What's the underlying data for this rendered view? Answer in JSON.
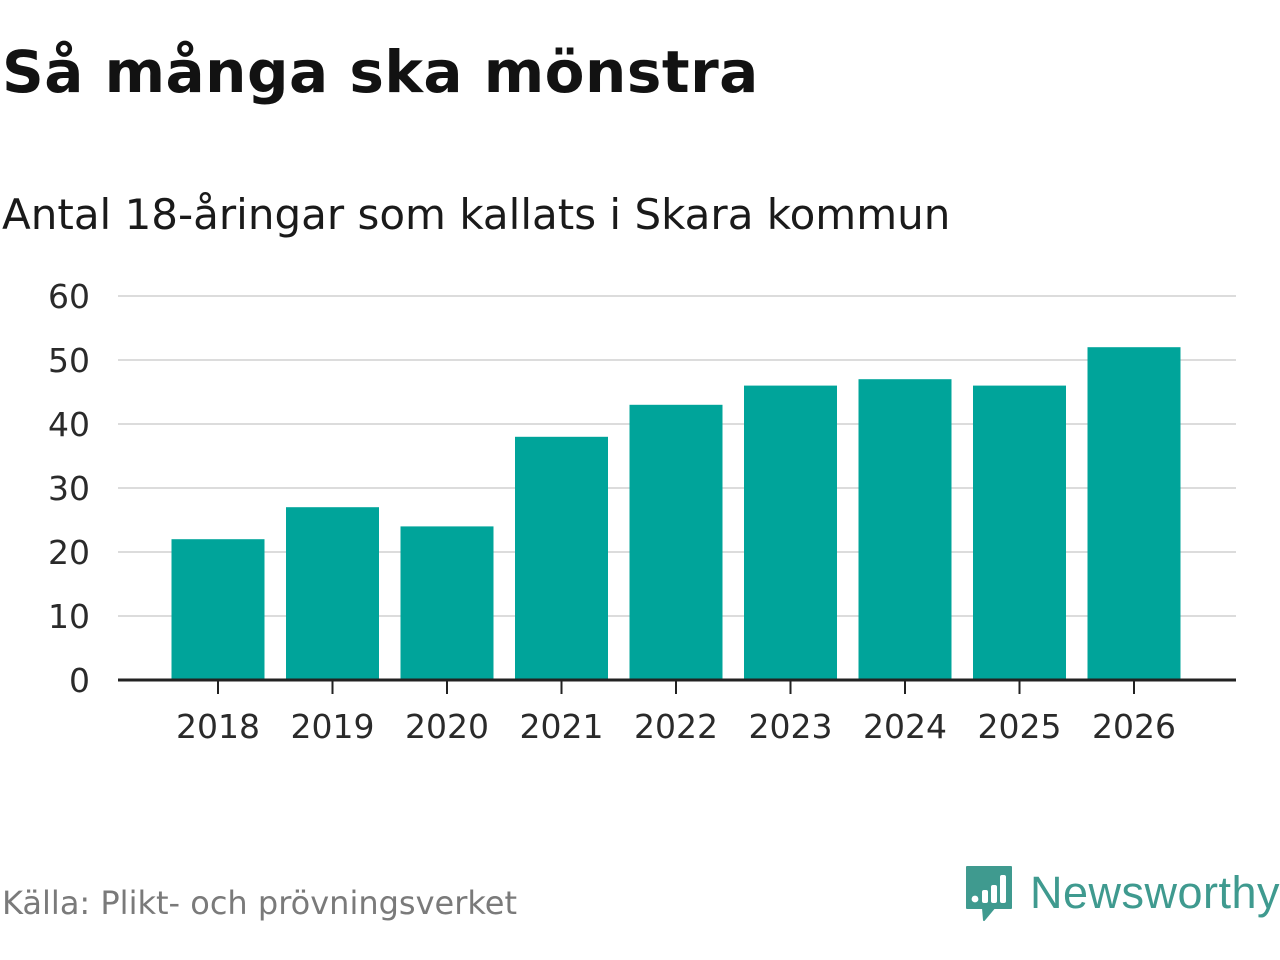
{
  "header": {
    "title": "Så många ska mönstra",
    "subtitle": "Antal 18-åringar som kallats i Skara kommun"
  },
  "footer": {
    "source": "Källa: Plikt- och prövningsverket",
    "brand": "Newsworthy",
    "brand_icon": "newsworthy-logo-icon"
  },
  "colors": {
    "bar": "#00a49a",
    "grid": "#dcdcdc",
    "axis": "#222222",
    "brand": "#3f9a8f"
  },
  "chart_data": {
    "type": "bar",
    "title": "Så många ska mönstra",
    "subtitle": "Antal 18-åringar som kallats i Skara kommun",
    "categories": [
      "2018",
      "2019",
      "2020",
      "2021",
      "2022",
      "2023",
      "2024",
      "2025",
      "2026"
    ],
    "values": [
      22,
      27,
      24,
      38,
      43,
      46,
      47,
      46,
      52
    ],
    "xlabel": "",
    "ylabel": "",
    "ylim": [
      0,
      60
    ],
    "yticks": [
      "0",
      "10",
      "20",
      "30",
      "40",
      "50",
      "60"
    ],
    "grid": true,
    "legend": "none"
  }
}
